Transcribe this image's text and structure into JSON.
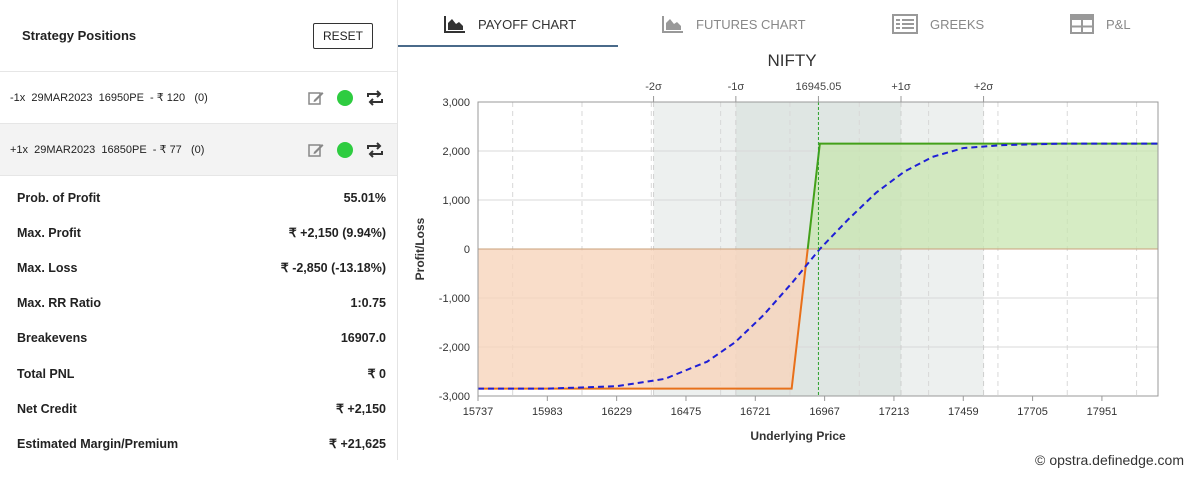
{
  "left_panel": {
    "title": "Strategy Positions",
    "reset_label": "RESET",
    "positions": [
      {
        "text": "-1x  29MAR2023  16950PE  - ₹ 120   (0)"
      },
      {
        "text": "+1x  29MAR2023  16850PE  - ₹ 77   (0)"
      }
    ],
    "stats": [
      {
        "label": "Prob. of Profit",
        "value": "55.01%"
      },
      {
        "label": "Max. Profit",
        "value": "₹ +2,150 (9.94%)"
      },
      {
        "label": "Max. Loss",
        "value": "₹ -2,850 (-13.18%)"
      },
      {
        "label": "Max. RR Ratio",
        "value": "1:0.75"
      },
      {
        "label": "Breakevens",
        "value": "16907.0"
      },
      {
        "label": "Total PNL",
        "value": "₹ 0"
      },
      {
        "label": "Net Credit",
        "value": "₹ +2,150"
      },
      {
        "label": "Estimated Margin/Premium",
        "value": "₹ +21,625"
      }
    ]
  },
  "tabs": [
    {
      "label": "PAYOFF CHART",
      "icon": "area-chart-icon",
      "active": true
    },
    {
      "label": "FUTURES CHART",
      "icon": "area-chart-icon",
      "active": false
    },
    {
      "label": "GREEKS",
      "icon": "list-icon",
      "active": false
    },
    {
      "label": "P&L",
      "icon": "table-icon",
      "active": false
    }
  ],
  "colors": {
    "profit_line": "#43a01a",
    "loss_line": "#e8701a",
    "profit_fill": "#c8e6b0",
    "loss_fill": "#f7d4bc",
    "expected_line": "#1f1fd6",
    "spot_line": "#2ca02c",
    "band_outer": "#edf0ef",
    "band_inner": "#dfe6e3"
  },
  "chart_data": {
    "type": "line",
    "title": "NIFTY",
    "xlabel": "Underlying Price",
    "ylabel": "Profit/Loss",
    "xlim": [
      15737,
      18150
    ],
    "ylim": [
      -3000,
      3000
    ],
    "x_ticks": [
      15737,
      15983,
      16229,
      16475,
      16721,
      16967,
      17213,
      17459,
      17705,
      17951
    ],
    "y_ticks": [
      3000,
      2000,
      1000,
      0,
      -1000,
      -2000,
      -3000
    ],
    "y_tick_labels": [
      "3,000",
      "2,000",
      "1,000",
      "0",
      "-1,000",
      "-2,000",
      "-3,000"
    ],
    "spot": 16945.05,
    "spot_label": "16945.05",
    "sigma_levels": [
      {
        "label": "-2σ",
        "x": 16360
      },
      {
        "label": "-1σ",
        "x": 16652
      },
      {
        "label": "+1σ",
        "x": 17238
      },
      {
        "label": "+2σ",
        "x": 17531
      }
    ],
    "series": [
      {
        "style": "solid",
        "x": [
          15737,
          16850,
          16950,
          18150
        ],
        "y": [
          -2850,
          -2850,
          2150,
          2150
        ]
      },
      {
        "style": "dashed",
        "x": [
          15737,
          15983,
          16229,
          16400,
          16550,
          16650,
          16750,
          16850,
          16900,
          16950,
          17050,
          17150,
          17250,
          17350,
          17459,
          17600,
          17800,
          18150
        ],
        "y": [
          -2850,
          -2850,
          -2800,
          -2650,
          -2300,
          -1900,
          -1350,
          -700,
          -350,
          0,
          600,
          1150,
          1580,
          1880,
          2060,
          2120,
          2150,
          2150
        ]
      }
    ]
  },
  "footer": {
    "copyright_symbol": "©",
    "text": "opstra.definedge.com"
  }
}
